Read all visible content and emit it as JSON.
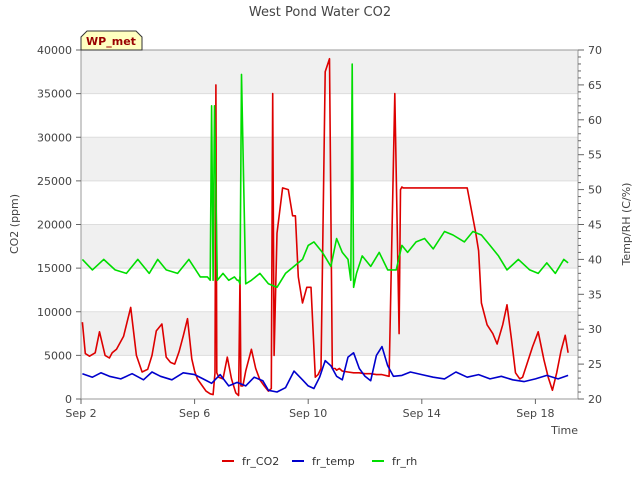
{
  "chart_data": {
    "type": "line",
    "title": "West Pond Water CO2",
    "xlabel": "Time",
    "ylabel_left": "CO2 (ppm)",
    "ylabel_right": "Temp/RH (C/%)",
    "site_label": "WP_met",
    "x_unit": "days since Sep 2",
    "xlim": [
      0,
      17.5
    ],
    "ylim_left": [
      0,
      40000
    ],
    "ylim_right": [
      20,
      70
    ],
    "xticks": [
      {
        "x": 0,
        "label": "Sep 2"
      },
      {
        "x": 4,
        "label": "Sep 6"
      },
      {
        "x": 8,
        "label": "Sep 10"
      },
      {
        "x": 12,
        "label": "Sep 14"
      },
      {
        "x": 16,
        "label": "Sep 18"
      }
    ],
    "yticks_left": [
      {
        "v": 0,
        "label": "0"
      },
      {
        "v": 5000,
        "label": "5000"
      },
      {
        "v": 10000,
        "label": "10000"
      },
      {
        "v": 15000,
        "label": "15000"
      },
      {
        "v": 20000,
        "label": "20000"
      },
      {
        "v": 25000,
        "label": "25000"
      },
      {
        "v": 30000,
        "label": "30000"
      },
      {
        "v": 35000,
        "label": "35000"
      },
      {
        "v": 40000,
        "label": "40000"
      }
    ],
    "yticks_right": [
      {
        "v": 20,
        "label": "20"
      },
      {
        "v": 25,
        "label": "25"
      },
      {
        "v": 30,
        "label": "30"
      },
      {
        "v": 35,
        "label": "35"
      },
      {
        "v": 40,
        "label": "40"
      },
      {
        "v": 45,
        "label": "45"
      },
      {
        "v": 50,
        "label": "50"
      },
      {
        "v": 55,
        "label": "55"
      },
      {
        "v": 60,
        "label": "60"
      },
      {
        "v": 65,
        "label": "65"
      },
      {
        "v": 70,
        "label": "70"
      }
    ],
    "series": [
      {
        "name": "fr_CO2",
        "color": "#dd0000",
        "axis": "left",
        "x": [
          0.05,
          0.15,
          0.3,
          0.5,
          0.65,
          0.85,
          1.0,
          1.1,
          1.25,
          1.5,
          1.75,
          1.95,
          2.15,
          2.35,
          2.5,
          2.65,
          2.85,
          3.0,
          3.15,
          3.3,
          3.45,
          3.6,
          3.75,
          3.9,
          4.0,
          4.1,
          4.25,
          4.4,
          4.55,
          4.65,
          4.72,
          4.75,
          4.78,
          4.85,
          5.0,
          5.15,
          5.3,
          5.45,
          5.55,
          5.6,
          5.63,
          5.7,
          5.8,
          6.0,
          6.15,
          6.3,
          6.45,
          6.6,
          6.7,
          6.75,
          6.8,
          6.9,
          7.1,
          7.3,
          7.45,
          7.55,
          7.65,
          7.8,
          7.95,
          8.1,
          8.25,
          8.35,
          8.45,
          8.6,
          8.75,
          8.85,
          8.95,
          9.0,
          9.05,
          9.1,
          9.2,
          9.4,
          9.6,
          9.8,
          10.0,
          10.2,
          10.4,
          10.6,
          10.85,
          11.05,
          11.2,
          11.25,
          11.3,
          11.35,
          11.45,
          11.6,
          11.8,
          12.0,
          12.4,
          12.8,
          13.2,
          13.6,
          13.9,
          14.0,
          14.1,
          14.3,
          14.5,
          14.65,
          14.85,
          15.0,
          15.15,
          15.3,
          15.45,
          15.55,
          15.7,
          15.9,
          16.1,
          16.3,
          16.45,
          16.6,
          16.75,
          16.9,
          17.05,
          17.15
        ],
        "y": [
          8800,
          5200,
          4900,
          5300,
          7700,
          5000,
          4700,
          5300,
          5700,
          7200,
          10500,
          5000,
          3100,
          3400,
          5000,
          7800,
          8600,
          4800,
          4200,
          4000,
          5400,
          7200,
          9200,
          4600,
          3200,
          2300,
          1600,
          900,
          600,
          500,
          3000,
          36000,
          3000,
          2500,
          2300,
          4800,
          2300,
          700,
          400,
          14000,
          1500,
          1500,
          3200,
          5700,
          3500,
          2200,
          1500,
          900,
          1200,
          35000,
          5000,
          19000,
          24200,
          24000,
          21000,
          21000,
          14000,
          11000,
          12800,
          12800,
          2500,
          2800,
          3500,
          37500,
          39000,
          3500,
          3500,
          3300,
          3400,
          3500,
          3200,
          3100,
          3000,
          3000,
          2900,
          2900,
          2800,
          2800,
          2600,
          35000,
          7500,
          24000,
          24300,
          24200,
          24200,
          24200,
          24200,
          24200,
          24200,
          24200,
          24200,
          24200,
          19000,
          17000,
          11000,
          8500,
          7500,
          6300,
          8500,
          10800,
          7000,
          3000,
          2300,
          2500,
          4000,
          6000,
          7700,
          4500,
          2500,
          1000,
          3000,
          5500,
          7300,
          5300
        ]
      },
      {
        "name": "fr_temp",
        "color": "#0000cc",
        "axis": "left",
        "x": [
          0.05,
          0.4,
          0.7,
          1.0,
          1.4,
          1.8,
          2.2,
          2.5,
          2.8,
          3.2,
          3.6,
          4.0,
          4.3,
          4.6,
          4.9,
          5.2,
          5.5,
          5.8,
          6.1,
          6.4,
          6.6,
          6.9,
          7.2,
          7.5,
          7.8,
          8.0,
          8.2,
          8.4,
          8.6,
          8.8,
          9.0,
          9.2,
          9.4,
          9.6,
          9.8,
          10.0,
          10.2,
          10.4,
          10.6,
          10.8,
          11.0,
          11.3,
          11.6,
          12.0,
          12.4,
          12.8,
          13.2,
          13.6,
          14.0,
          14.4,
          14.8,
          15.2,
          15.6,
          16.0,
          16.4,
          16.8,
          17.15
        ],
        "y": [
          2900,
          2500,
          3000,
          2600,
          2300,
          2900,
          2200,
          3100,
          2600,
          2200,
          3000,
          2800,
          2300,
          1800,
          2800,
          1500,
          1900,
          1500,
          2500,
          2100,
          1000,
          800,
          1300,
          3200,
          2200,
          1500,
          1200,
          2500,
          4400,
          3800,
          2600,
          2200,
          4800,
          5300,
          3500,
          2600,
          2100,
          5000,
          6000,
          3800,
          2600,
          2700,
          3100,
          2800,
          2500,
          2300,
          3100,
          2500,
          2800,
          2300,
          2600,
          2200,
          2000,
          2300,
          2700,
          2300,
          2700
        ]
      },
      {
        "name": "fr_rh",
        "color": "#00dd00",
        "axis": "right",
        "x": [
          0.05,
          0.4,
          0.8,
          1.2,
          1.6,
          2.0,
          2.4,
          2.7,
          3.0,
          3.4,
          3.8,
          4.2,
          4.45,
          4.55,
          4.6,
          4.65,
          4.7,
          4.8,
          5.0,
          5.2,
          5.4,
          5.5,
          5.55,
          5.6,
          5.65,
          5.8,
          6.0,
          6.3,
          6.6,
          6.9,
          7.2,
          7.5,
          7.8,
          8.0,
          8.2,
          8.5,
          8.8,
          9.0,
          9.2,
          9.4,
          9.5,
          9.55,
          9.6,
          9.7,
          9.9,
          10.2,
          10.5,
          10.8,
          11.1,
          11.3,
          11.5,
          11.8,
          12.1,
          12.4,
          12.8,
          13.1,
          13.5,
          13.8,
          14.1,
          14.4,
          14.7,
          15.0,
          15.4,
          15.8,
          16.1,
          16.4,
          16.7,
          17.0,
          17.15
        ],
        "y": [
          40,
          38.5,
          40,
          38.5,
          38,
          40,
          38,
          40,
          38.5,
          38,
          40,
          37.5,
          37.5,
          37,
          62,
          37,
          62,
          37,
          38,
          37,
          37.5,
          37,
          37,
          36.5,
          66.5,
          36.5,
          37,
          38,
          36.5,
          36,
          38,
          39,
          40,
          42,
          42.5,
          41,
          39,
          43,
          41,
          40,
          37,
          68,
          36,
          38,
          40.5,
          39,
          41,
          38.5,
          38.5,
          42,
          41,
          42.5,
          43,
          41.5,
          44,
          43.5,
          42.5,
          44,
          43.5,
          42,
          40.5,
          38.5,
          40,
          38.5,
          38,
          39.5,
          38,
          40,
          39.5
        ]
      }
    ]
  }
}
